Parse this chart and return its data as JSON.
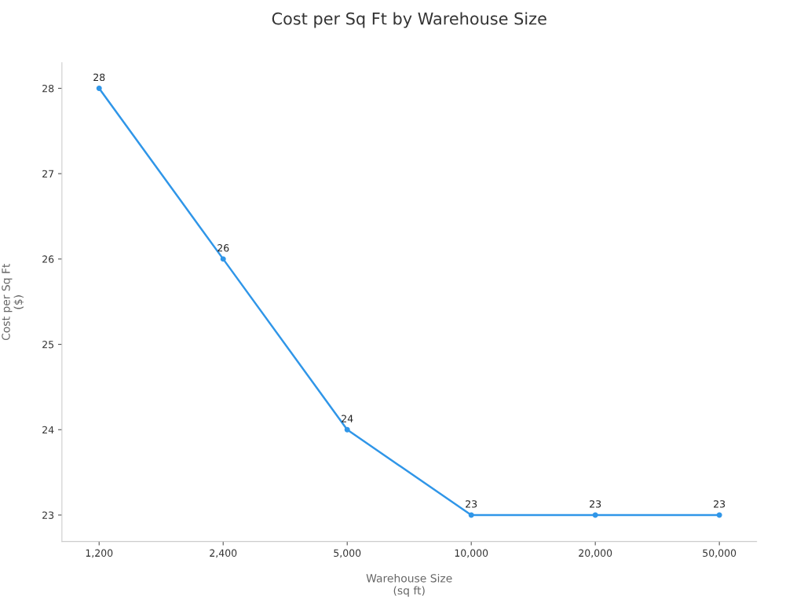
{
  "chart_data": {
    "type": "line",
    "title": "Cost per Sq Ft by Warehouse Size",
    "xlabel": "Warehouse Size\n(sq ft)",
    "ylabel": "Cost per Sq Ft\n($)",
    "categories": [
      "1,200",
      "2,400",
      "5,000",
      "10,000",
      "20,000",
      "50,000"
    ],
    "series": [
      {
        "color": "#3096e8",
        "values": [
          28,
          26,
          24,
          23,
          23,
          23
        ]
      }
    ],
    "ylim": [
      22.69,
      28.3
    ],
    "yticks": [
      23,
      24,
      25,
      26,
      27,
      28
    ],
    "data_labels": true,
    "marker": "circle",
    "line_style": "solid",
    "grid": false,
    "legend": false
  }
}
